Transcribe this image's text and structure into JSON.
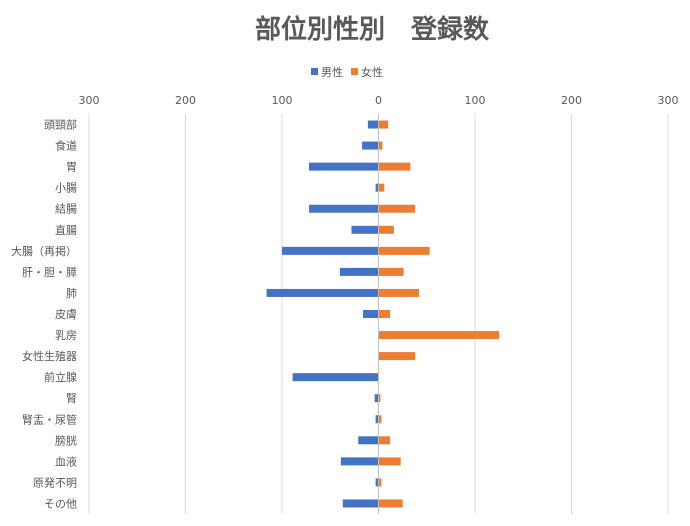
{
  "chart_data": {
    "type": "bar",
    "orientation": "horizontal-butterfly",
    "title": "部位別性別　登録数",
    "categories": [
      "頭頸部",
      "食道",
      "胃",
      "小腸",
      "結腸",
      "直腸",
      "大腸（再掲）",
      "肝・胆・膵",
      "肺",
      "皮膚",
      "乳房",
      "女性生殖器",
      "前立腺",
      "腎",
      "腎盂・尿管",
      "膀胱",
      "血液",
      "原発不明",
      "その他"
    ],
    "series": [
      {
        "name": "男性",
        "color": "#4472C4",
        "side": "left",
        "values": [
          11,
          17,
          72,
          3,
          72,
          28,
          100,
          40,
          116,
          16,
          0,
          0,
          89,
          4,
          3,
          21,
          39,
          3,
          37
        ]
      },
      {
        "name": "女性",
        "color": "#ED7D31",
        "side": "right",
        "values": [
          10,
          4,
          33,
          6,
          38,
          16,
          53,
          26,
          42,
          12,
          125,
          38,
          0,
          2,
          3,
          12,
          23,
          3,
          25
        ]
      }
    ],
    "xlim": [
      -300,
      300
    ],
    "x_ticks": [
      -300,
      -200,
      -100,
      0,
      100,
      200,
      300
    ],
    "x_tick_labels": [
      "300",
      "200",
      "100",
      "0",
      "100",
      "200",
      "300"
    ],
    "grid": true,
    "legend_position": "top"
  }
}
